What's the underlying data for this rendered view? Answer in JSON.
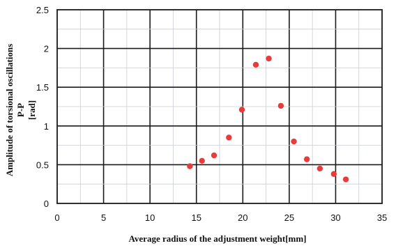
{
  "chart_data": {
    "type": "scatter",
    "title": "",
    "xlabel": "Average radius of the adjustment weight[mm]",
    "ylabel_lines": [
      "Amplitude of torsional oscillations",
      "P-P",
      "[rad]"
    ],
    "xlim": [
      0,
      35
    ],
    "ylim": [
      0,
      2.5
    ],
    "x_ticks": [
      "0",
      "5",
      "10",
      "15",
      "20",
      "25",
      "30",
      "35"
    ],
    "y_ticks": [
      "0",
      "0.5",
      "1",
      "1.5",
      "2",
      "2.5"
    ],
    "grid": true,
    "legend": "none",
    "marker_color": "#e83b3b",
    "points": [
      {
        "x": 14.3,
        "y": 0.48
      },
      {
        "x": 15.6,
        "y": 0.55
      },
      {
        "x": 16.9,
        "y": 0.62
      },
      {
        "x": 18.5,
        "y": 0.85
      },
      {
        "x": 19.9,
        "y": 1.21
      },
      {
        "x": 21.4,
        "y": 1.79
      },
      {
        "x": 22.8,
        "y": 1.87
      },
      {
        "x": 24.1,
        "y": 1.26
      },
      {
        "x": 25.5,
        "y": 0.8
      },
      {
        "x": 26.9,
        "y": 0.57
      },
      {
        "x": 28.3,
        "y": 0.45
      },
      {
        "x": 29.8,
        "y": 0.38
      },
      {
        "x": 31.1,
        "y": 0.31
      }
    ]
  }
}
